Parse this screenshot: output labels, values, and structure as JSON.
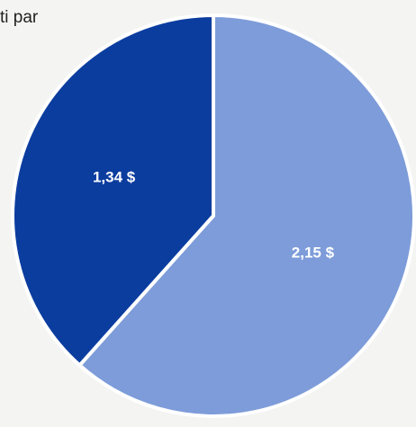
{
  "chart_data": {
    "type": "pie",
    "title": "ti par",
    "values": [
      2.15,
      1.34
    ],
    "value_labels": [
      "2,15 $",
      "1,34 $"
    ],
    "colors": [
      "#7d9cd9",
      "#0b3d9f"
    ]
  }
}
